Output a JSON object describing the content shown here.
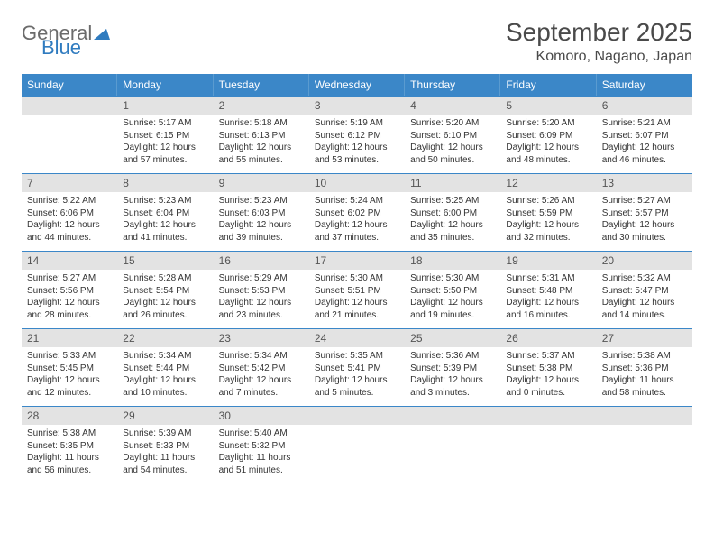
{
  "logo": {
    "part1": "General",
    "part2": "Blue"
  },
  "title": "September 2025",
  "location": "Komoro, Nagano, Japan",
  "colors": {
    "header_bg": "#3b87c8",
    "header_text": "#ffffff",
    "daynum_bg": "#e3e3e3",
    "accent_border": "#3b87c8",
    "logo_grey": "#6b6b6b",
    "logo_blue": "#2f7bbf",
    "body_text": "#333333",
    "title_text": "#4a4a4a"
  },
  "layout": {
    "columns": 7,
    "cell_fontsize_pt": 8,
    "weekday_fontsize_pt": 9,
    "title_fontsize_pt": 21,
    "location_fontsize_pt": 12
  },
  "weekdays": [
    "Sunday",
    "Monday",
    "Tuesday",
    "Wednesday",
    "Thursday",
    "Friday",
    "Saturday"
  ],
  "weeks": [
    {
      "nums": [
        "",
        "1",
        "2",
        "3",
        "4",
        "5",
        "6"
      ],
      "cells": [
        {
          "sunrise": "",
          "sunset": "",
          "daylight": ""
        },
        {
          "sunrise": "Sunrise: 5:17 AM",
          "sunset": "Sunset: 6:15 PM",
          "daylight": "Daylight: 12 hours and 57 minutes."
        },
        {
          "sunrise": "Sunrise: 5:18 AM",
          "sunset": "Sunset: 6:13 PM",
          "daylight": "Daylight: 12 hours and 55 minutes."
        },
        {
          "sunrise": "Sunrise: 5:19 AM",
          "sunset": "Sunset: 6:12 PM",
          "daylight": "Daylight: 12 hours and 53 minutes."
        },
        {
          "sunrise": "Sunrise: 5:20 AM",
          "sunset": "Sunset: 6:10 PM",
          "daylight": "Daylight: 12 hours and 50 minutes."
        },
        {
          "sunrise": "Sunrise: 5:20 AM",
          "sunset": "Sunset: 6:09 PM",
          "daylight": "Daylight: 12 hours and 48 minutes."
        },
        {
          "sunrise": "Sunrise: 5:21 AM",
          "sunset": "Sunset: 6:07 PM",
          "daylight": "Daylight: 12 hours and 46 minutes."
        }
      ]
    },
    {
      "nums": [
        "7",
        "8",
        "9",
        "10",
        "11",
        "12",
        "13"
      ],
      "cells": [
        {
          "sunrise": "Sunrise: 5:22 AM",
          "sunset": "Sunset: 6:06 PM",
          "daylight": "Daylight: 12 hours and 44 minutes."
        },
        {
          "sunrise": "Sunrise: 5:23 AM",
          "sunset": "Sunset: 6:04 PM",
          "daylight": "Daylight: 12 hours and 41 minutes."
        },
        {
          "sunrise": "Sunrise: 5:23 AM",
          "sunset": "Sunset: 6:03 PM",
          "daylight": "Daylight: 12 hours and 39 minutes."
        },
        {
          "sunrise": "Sunrise: 5:24 AM",
          "sunset": "Sunset: 6:02 PM",
          "daylight": "Daylight: 12 hours and 37 minutes."
        },
        {
          "sunrise": "Sunrise: 5:25 AM",
          "sunset": "Sunset: 6:00 PM",
          "daylight": "Daylight: 12 hours and 35 minutes."
        },
        {
          "sunrise": "Sunrise: 5:26 AM",
          "sunset": "Sunset: 5:59 PM",
          "daylight": "Daylight: 12 hours and 32 minutes."
        },
        {
          "sunrise": "Sunrise: 5:27 AM",
          "sunset": "Sunset: 5:57 PM",
          "daylight": "Daylight: 12 hours and 30 minutes."
        }
      ]
    },
    {
      "nums": [
        "14",
        "15",
        "16",
        "17",
        "18",
        "19",
        "20"
      ],
      "cells": [
        {
          "sunrise": "Sunrise: 5:27 AM",
          "sunset": "Sunset: 5:56 PM",
          "daylight": "Daylight: 12 hours and 28 minutes."
        },
        {
          "sunrise": "Sunrise: 5:28 AM",
          "sunset": "Sunset: 5:54 PM",
          "daylight": "Daylight: 12 hours and 26 minutes."
        },
        {
          "sunrise": "Sunrise: 5:29 AM",
          "sunset": "Sunset: 5:53 PM",
          "daylight": "Daylight: 12 hours and 23 minutes."
        },
        {
          "sunrise": "Sunrise: 5:30 AM",
          "sunset": "Sunset: 5:51 PM",
          "daylight": "Daylight: 12 hours and 21 minutes."
        },
        {
          "sunrise": "Sunrise: 5:30 AM",
          "sunset": "Sunset: 5:50 PM",
          "daylight": "Daylight: 12 hours and 19 minutes."
        },
        {
          "sunrise": "Sunrise: 5:31 AM",
          "sunset": "Sunset: 5:48 PM",
          "daylight": "Daylight: 12 hours and 16 minutes."
        },
        {
          "sunrise": "Sunrise: 5:32 AM",
          "sunset": "Sunset: 5:47 PM",
          "daylight": "Daylight: 12 hours and 14 minutes."
        }
      ]
    },
    {
      "nums": [
        "21",
        "22",
        "23",
        "24",
        "25",
        "26",
        "27"
      ],
      "cells": [
        {
          "sunrise": "Sunrise: 5:33 AM",
          "sunset": "Sunset: 5:45 PM",
          "daylight": "Daylight: 12 hours and 12 minutes."
        },
        {
          "sunrise": "Sunrise: 5:34 AM",
          "sunset": "Sunset: 5:44 PM",
          "daylight": "Daylight: 12 hours and 10 minutes."
        },
        {
          "sunrise": "Sunrise: 5:34 AM",
          "sunset": "Sunset: 5:42 PM",
          "daylight": "Daylight: 12 hours and 7 minutes."
        },
        {
          "sunrise": "Sunrise: 5:35 AM",
          "sunset": "Sunset: 5:41 PM",
          "daylight": "Daylight: 12 hours and 5 minutes."
        },
        {
          "sunrise": "Sunrise: 5:36 AM",
          "sunset": "Sunset: 5:39 PM",
          "daylight": "Daylight: 12 hours and 3 minutes."
        },
        {
          "sunrise": "Sunrise: 5:37 AM",
          "sunset": "Sunset: 5:38 PM",
          "daylight": "Daylight: 12 hours and 0 minutes."
        },
        {
          "sunrise": "Sunrise: 5:38 AM",
          "sunset": "Sunset: 5:36 PM",
          "daylight": "Daylight: 11 hours and 58 minutes."
        }
      ]
    },
    {
      "nums": [
        "28",
        "29",
        "30",
        "",
        "",
        "",
        ""
      ],
      "cells": [
        {
          "sunrise": "Sunrise: 5:38 AM",
          "sunset": "Sunset: 5:35 PM",
          "daylight": "Daylight: 11 hours and 56 minutes."
        },
        {
          "sunrise": "Sunrise: 5:39 AM",
          "sunset": "Sunset: 5:33 PM",
          "daylight": "Daylight: 11 hours and 54 minutes."
        },
        {
          "sunrise": "Sunrise: 5:40 AM",
          "sunset": "Sunset: 5:32 PM",
          "daylight": "Daylight: 11 hours and 51 minutes."
        },
        {
          "sunrise": "",
          "sunset": "",
          "daylight": ""
        },
        {
          "sunrise": "",
          "sunset": "",
          "daylight": ""
        },
        {
          "sunrise": "",
          "sunset": "",
          "daylight": ""
        },
        {
          "sunrise": "",
          "sunset": "",
          "daylight": ""
        }
      ]
    }
  ]
}
